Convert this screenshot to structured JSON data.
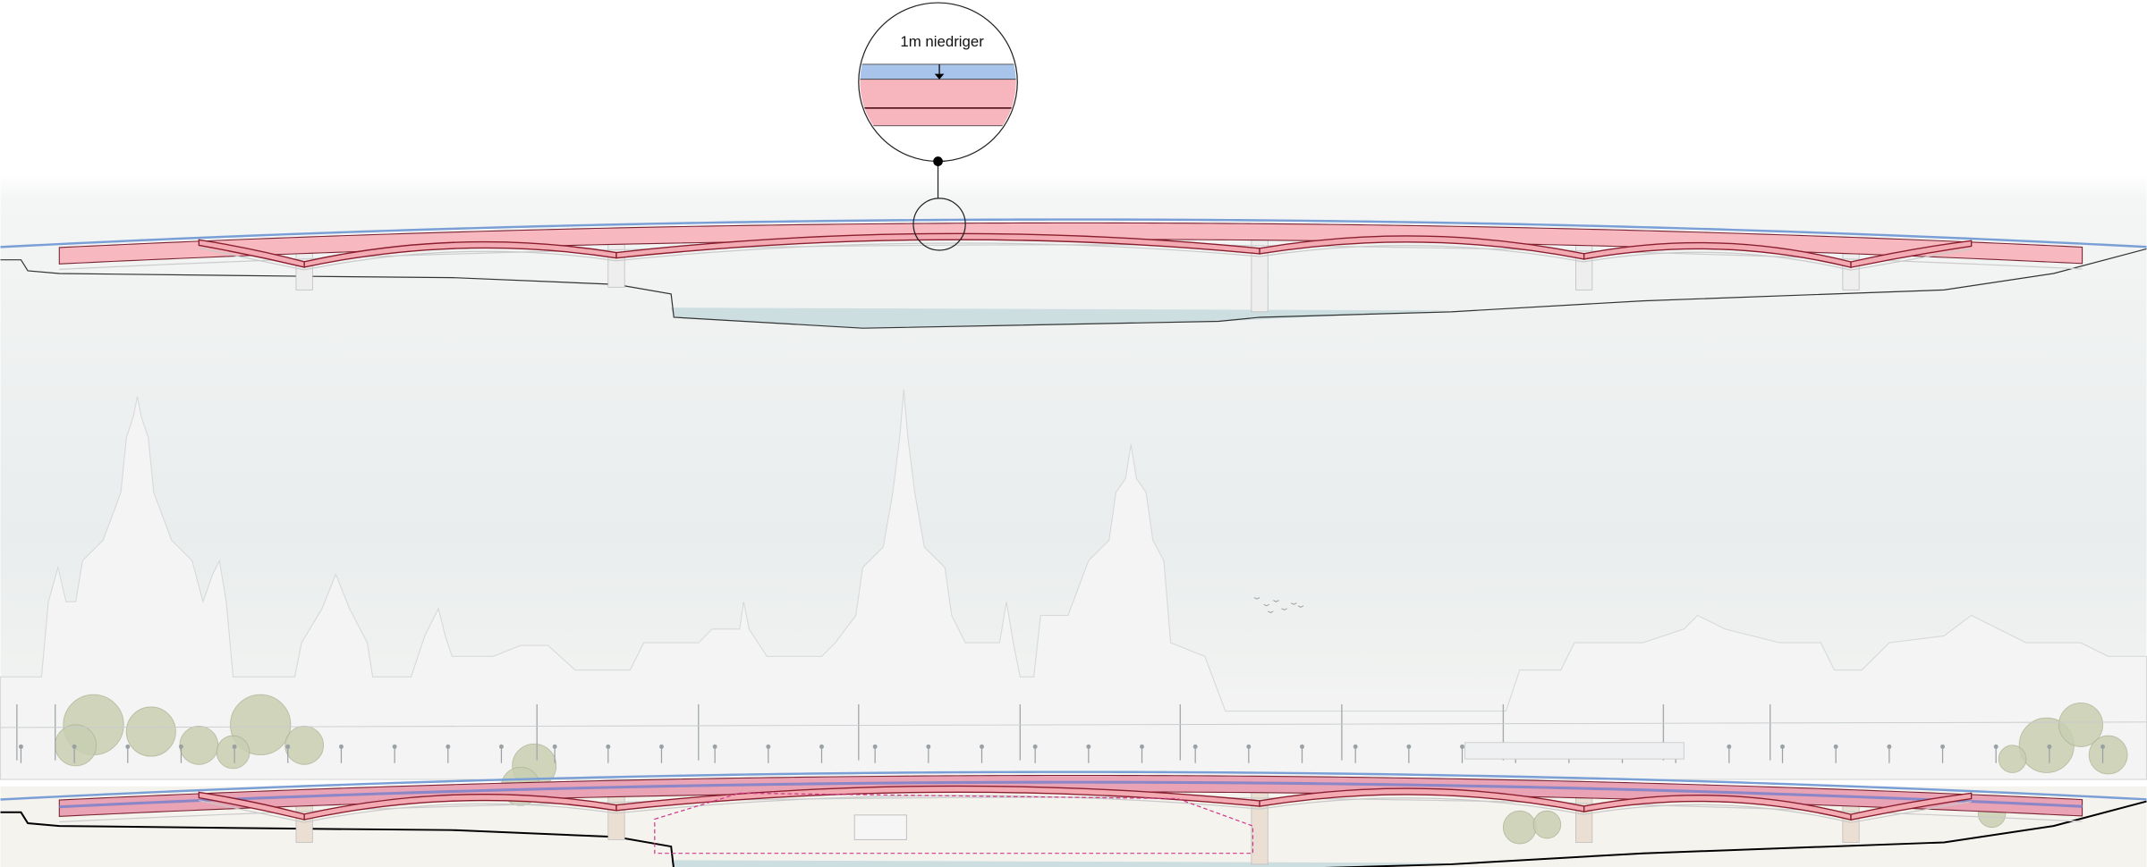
{
  "callout": {
    "label": "1m niedriger"
  }
}
